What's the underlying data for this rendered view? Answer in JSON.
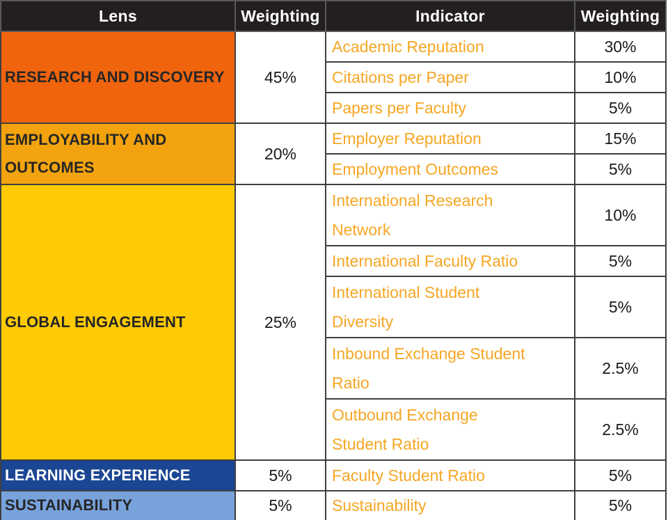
{
  "columns": [
    "Lens",
    "Weighting",
    "Indicator",
    "Weighting"
  ],
  "colors": {
    "header_bg": "#231F20",
    "header_text": "#FFFFFF",
    "border": "#3F3F3F",
    "indicator_text": "#F5A623",
    "weighting_text": "#1A1A1A"
  },
  "groups": [
    {
      "lens": "RESEARCH AND DISCOVERY",
      "weighting": "45%",
      "bg": "#F0640D",
      "fg": "#262626",
      "indicators": [
        {
          "name": "Academic Reputation",
          "weighting": "30%"
        },
        {
          "name": "Citations per Paper",
          "weighting": "10%"
        },
        {
          "name": "Papers per Faculty",
          "weighting": "5%"
        }
      ]
    },
    {
      "lens": "EMPLOYABILITY AND OUTCOMES",
      "weighting": "20%",
      "bg": "#F2A30D",
      "fg": "#262626",
      "indicators": [
        {
          "name": "Employer Reputation",
          "weighting": "15%"
        },
        {
          "name": "Employment Outcomes",
          "weighting": "5%"
        }
      ]
    },
    {
      "lens": "GLOBAL ENGAGEMENT",
      "weighting": "25%",
      "bg": "#FFCB05",
      "fg": "#262626",
      "indicators": [
        {
          "name": "International Research Network",
          "weighting": "10%"
        },
        {
          "name": "International Faculty Ratio",
          "weighting": "5%"
        },
        {
          "name": "International Student Diversity",
          "weighting": "5%"
        },
        {
          "name": "Inbound Exchange Student Ratio",
          "weighting": "2.5%"
        },
        {
          "name": "Outbound Exchange Student Ratio",
          "weighting": "2.5%"
        }
      ]
    },
    {
      "lens": "LEARNING EXPERIENCE",
      "weighting": "5%",
      "bg": "#1B4694",
      "fg": "#FFFFFF",
      "indicators": [
        {
          "name": "Faculty Student Ratio",
          "weighting": "5%"
        }
      ]
    },
    {
      "lens": "SUSTAINABILITY",
      "weighting": "5%",
      "bg": "#78A2DC",
      "fg": "#262626",
      "indicators": [
        {
          "name": "Sustainability",
          "weighting": "5%"
        }
      ]
    }
  ]
}
